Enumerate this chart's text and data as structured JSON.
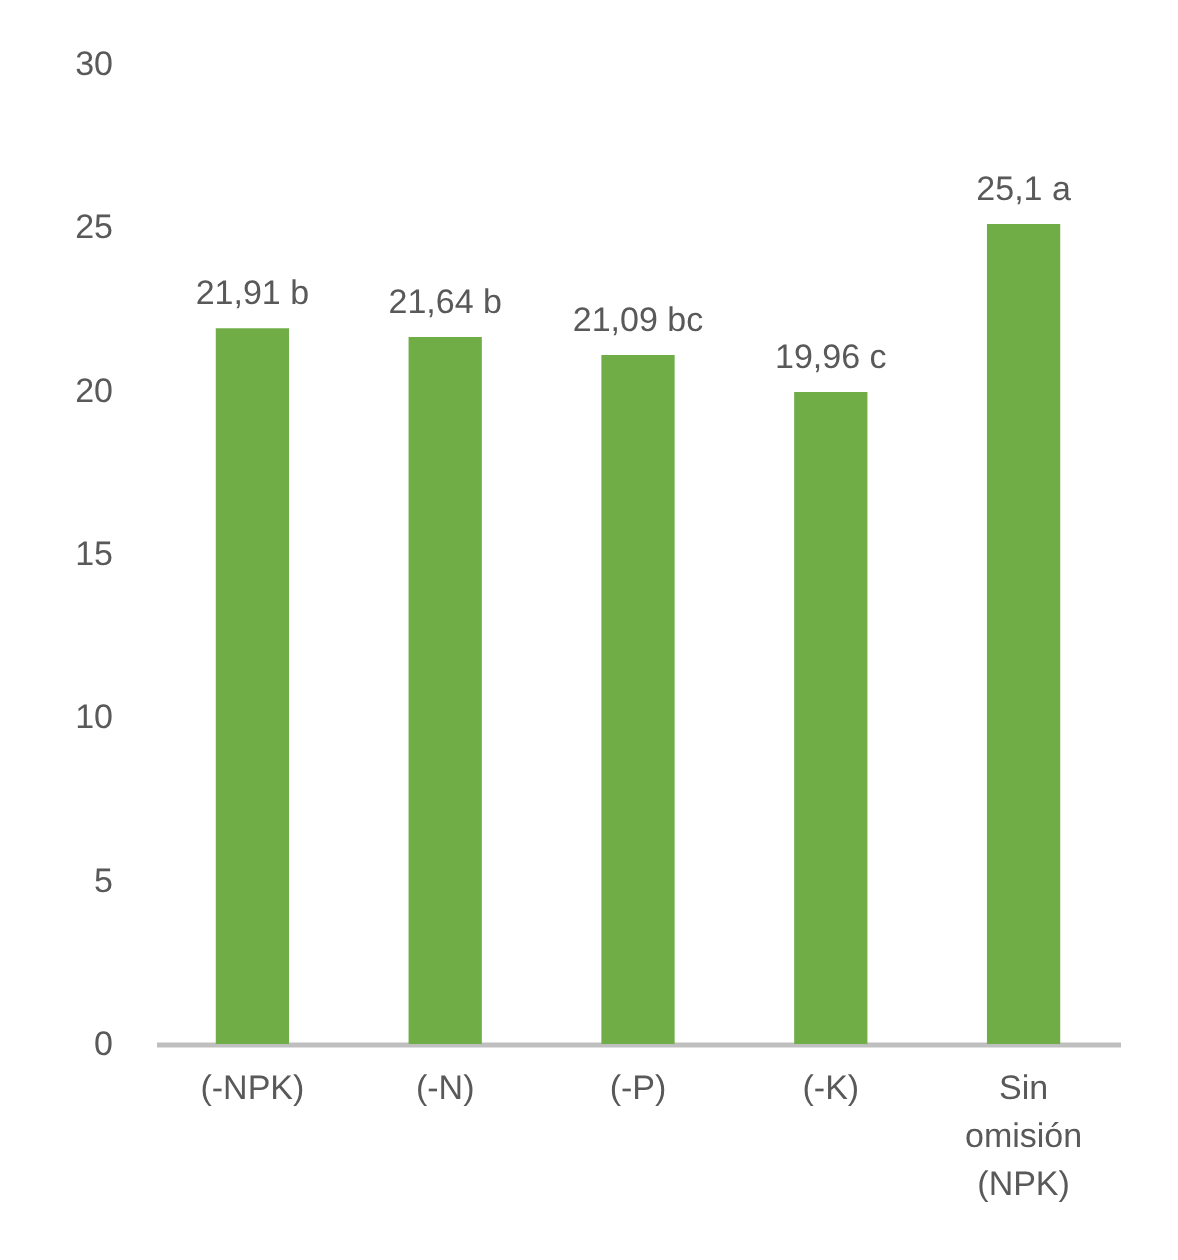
{
  "chart_data": {
    "type": "bar",
    "categories": [
      "(-NPK)",
      "(-N)",
      "(-P)",
      "(-K)",
      "Sin omisión (NPK)"
    ],
    "values": [
      21.91,
      21.64,
      21.09,
      19.96,
      25.1
    ],
    "color": "#70ad47",
    "value_labels": [
      "21,91 b",
      "21,64 b",
      "21,09 bc",
      "19,96 c",
      "25,1 a"
    ],
    "ylim": [
      0,
      30
    ],
    "yticks": [
      0,
      5,
      10,
      15,
      20,
      25,
      30
    ]
  }
}
